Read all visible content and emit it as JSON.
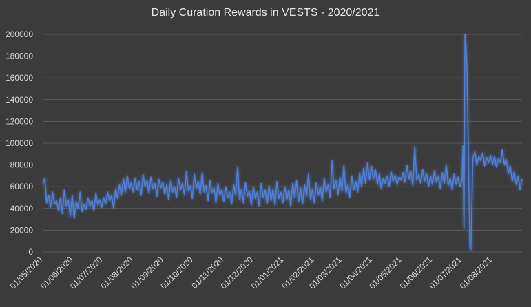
{
  "chart_data": {
    "type": "line",
    "title": "Daily Curation Rewards in VESTS - 2020/2021",
    "xlabel": "",
    "ylabel": "",
    "ylim": [
      0,
      200000
    ],
    "yticks": [
      0,
      20000,
      40000,
      60000,
      80000,
      100000,
      120000,
      140000,
      160000,
      180000,
      200000
    ],
    "xticks": [
      "01/05/2020",
      "01/06/2020",
      "01/07/2020",
      "01/08/2020",
      "01/09/2020",
      "01/10/2020",
      "01/11/2020",
      "01/12/2020",
      "01/01/2021",
      "01/02/2021",
      "01/03/2021",
      "01/04/2021",
      "01/05/2021",
      "01/06/2021",
      "01/07/2021",
      "01/08/2021"
    ],
    "grid": true,
    "legend": "none",
    "line_color": "#4f7fd6",
    "x_range": [
      "2020-05-01",
      "2021-08-31"
    ],
    "series": [
      {
        "values": [
          [
            "2020-05-01",
            62000
          ],
          [
            "2020-05-03",
            68000
          ],
          [
            "2020-05-05",
            45000
          ],
          [
            "2020-05-07",
            52000
          ],
          [
            "2020-05-09",
            41000
          ],
          [
            "2020-05-11",
            55000
          ],
          [
            "2020-05-13",
            44000
          ],
          [
            "2020-05-15",
            47000
          ],
          [
            "2020-05-17",
            38000
          ],
          [
            "2020-05-19",
            50000
          ],
          [
            "2020-05-21",
            35000
          ],
          [
            "2020-05-23",
            57000
          ],
          [
            "2020-05-25",
            42000
          ],
          [
            "2020-05-27",
            48000
          ],
          [
            "2020-05-29",
            33000
          ],
          [
            "2020-05-31",
            52000
          ],
          [
            "2020-06-02",
            31000
          ],
          [
            "2020-06-04",
            46000
          ],
          [
            "2020-06-06",
            40000
          ],
          [
            "2020-06-08",
            55000
          ],
          [
            "2020-06-10",
            37000
          ],
          [
            "2020-06-12",
            44000
          ],
          [
            "2020-06-14",
            39000
          ],
          [
            "2020-06-16",
            50000
          ],
          [
            "2020-06-18",
            42000
          ],
          [
            "2020-06-20",
            47000
          ],
          [
            "2020-06-22",
            38000
          ],
          [
            "2020-06-24",
            54000
          ],
          [
            "2020-06-26",
            43000
          ],
          [
            "2020-06-28",
            48000
          ],
          [
            "2020-06-30",
            41000
          ],
          [
            "2020-07-02",
            50000
          ],
          [
            "2020-07-04",
            44000
          ],
          [
            "2020-07-06",
            55000
          ],
          [
            "2020-07-08",
            47000
          ],
          [
            "2020-07-10",
            52000
          ],
          [
            "2020-07-12",
            40000
          ],
          [
            "2020-07-14",
            58000
          ],
          [
            "2020-07-16",
            49000
          ],
          [
            "2020-07-18",
            62000
          ],
          [
            "2020-07-20",
            52000
          ],
          [
            "2020-07-22",
            67000
          ],
          [
            "2020-07-24",
            55000
          ],
          [
            "2020-07-26",
            70000
          ],
          [
            "2020-07-28",
            58000
          ],
          [
            "2020-07-30",
            64000
          ],
          [
            "2020-08-01",
            55000
          ],
          [
            "2020-08-03",
            68000
          ],
          [
            "2020-08-05",
            57000
          ],
          [
            "2020-08-07",
            65000
          ],
          [
            "2020-08-09",
            52000
          ],
          [
            "2020-08-11",
            71000
          ],
          [
            "2020-08-13",
            60000
          ],
          [
            "2020-08-15",
            66000
          ],
          [
            "2020-08-17",
            54000
          ],
          [
            "2020-08-19",
            69000
          ],
          [
            "2020-08-21",
            58000
          ],
          [
            "2020-08-23",
            63000
          ],
          [
            "2020-08-25",
            51000
          ],
          [
            "2020-08-27",
            67000
          ],
          [
            "2020-08-29",
            59000
          ],
          [
            "2020-08-31",
            64000
          ],
          [
            "2020-09-02",
            53000
          ],
          [
            "2020-09-04",
            62000
          ],
          [
            "2020-09-06",
            48000
          ],
          [
            "2020-09-08",
            66000
          ],
          [
            "2020-09-10",
            55000
          ],
          [
            "2020-09-12",
            60000
          ],
          [
            "2020-09-14",
            50000
          ],
          [
            "2020-09-16",
            68000
          ],
          [
            "2020-09-18",
            57000
          ],
          [
            "2020-09-20",
            63000
          ],
          [
            "2020-09-22",
            52000
          ],
          [
            "2020-09-24",
            74000
          ],
          [
            "2020-09-26",
            56000
          ],
          [
            "2020-09-28",
            61000
          ],
          [
            "2020-09-30",
            49000
          ],
          [
            "2020-10-02",
            72000
          ],
          [
            "2020-10-04",
            58000
          ],
          [
            "2020-10-06",
            65000
          ],
          [
            "2020-10-08",
            53000
          ],
          [
            "2020-10-10",
            73000
          ],
          [
            "2020-10-12",
            55000
          ],
          [
            "2020-10-14",
            61000
          ],
          [
            "2020-10-16",
            47000
          ],
          [
            "2020-10-18",
            66000
          ],
          [
            "2020-10-20",
            54000
          ],
          [
            "2020-10-22",
            59000
          ],
          [
            "2020-10-24",
            45000
          ],
          [
            "2020-10-26",
            63000
          ],
          [
            "2020-10-28",
            52000
          ],
          [
            "2020-10-30",
            57000
          ],
          [
            "2020-11-01",
            46000
          ],
          [
            "2020-11-03",
            60000
          ],
          [
            "2020-11-05",
            50000
          ],
          [
            "2020-11-07",
            55000
          ],
          [
            "2020-11-09",
            44000
          ],
          [
            "2020-11-11",
            62000
          ],
          [
            "2020-11-13",
            52000
          ],
          [
            "2020-11-15",
            78000
          ],
          [
            "2020-11-17",
            48000
          ],
          [
            "2020-11-19",
            58000
          ],
          [
            "2020-11-21",
            45000
          ],
          [
            "2020-11-23",
            64000
          ],
          [
            "2020-11-25",
            51000
          ],
          [
            "2020-11-27",
            56000
          ],
          [
            "2020-11-29",
            43000
          ],
          [
            "2020-12-01",
            60000
          ],
          [
            "2020-12-03",
            49000
          ],
          [
            "2020-12-05",
            55000
          ],
          [
            "2020-12-07",
            42000
          ],
          [
            "2020-12-09",
            63000
          ],
          [
            "2020-12-11",
            50000
          ],
          [
            "2020-12-13",
            57000
          ],
          [
            "2020-12-15",
            44000
          ],
          [
            "2020-12-17",
            61000
          ],
          [
            "2020-12-19",
            47000
          ],
          [
            "2020-12-21",
            58000
          ],
          [
            "2020-12-23",
            43000
          ],
          [
            "2020-12-25",
            65000
          ],
          [
            "2020-12-27",
            49000
          ],
          [
            "2020-12-29",
            55000
          ],
          [
            "2020-12-31",
            45000
          ],
          [
            "2021-01-02",
            60000
          ],
          [
            "2021-01-04",
            48000
          ],
          [
            "2021-01-06",
            57000
          ],
          [
            "2021-01-08",
            42000
          ],
          [
            "2021-01-10",
            63000
          ],
          [
            "2021-01-12",
            50000
          ],
          [
            "2021-01-14",
            66000
          ],
          [
            "2021-01-16",
            46000
          ],
          [
            "2021-01-18",
            59000
          ],
          [
            "2021-01-20",
            44000
          ],
          [
            "2021-01-22",
            62000
          ],
          [
            "2021-01-24",
            51000
          ],
          [
            "2021-01-26",
            72000
          ],
          [
            "2021-01-28",
            48000
          ],
          [
            "2021-01-30",
            58000
          ],
          [
            "2021-02-01",
            45000
          ],
          [
            "2021-02-03",
            64000
          ],
          [
            "2021-02-05",
            52000
          ],
          [
            "2021-02-07",
            60000
          ],
          [
            "2021-02-09",
            47000
          ],
          [
            "2021-02-11",
            68000
          ],
          [
            "2021-02-13",
            55000
          ],
          [
            "2021-02-15",
            62000
          ],
          [
            "2021-02-17",
            50000
          ],
          [
            "2021-02-19",
            84000
          ],
          [
            "2021-02-21",
            58000
          ],
          [
            "2021-02-23",
            66000
          ],
          [
            "2021-02-25",
            52000
          ],
          [
            "2021-02-27",
            69000
          ],
          [
            "2021-03-01",
            56000
          ],
          [
            "2021-03-03",
            80000
          ],
          [
            "2021-03-05",
            54000
          ],
          [
            "2021-03-07",
            62000
          ],
          [
            "2021-03-09",
            50000
          ],
          [
            "2021-03-11",
            70000
          ],
          [
            "2021-03-13",
            57000
          ],
          [
            "2021-03-15",
            65000
          ],
          [
            "2021-03-17",
            55000
          ],
          [
            "2021-03-19",
            73000
          ],
          [
            "2021-03-21",
            60000
          ],
          [
            "2021-03-23",
            77000
          ],
          [
            "2021-03-25",
            63000
          ],
          [
            "2021-03-27",
            82000
          ],
          [
            "2021-03-29",
            66000
          ],
          [
            "2021-03-31",
            79000
          ],
          [
            "2021-04-02",
            67000
          ],
          [
            "2021-04-04",
            76000
          ],
          [
            "2021-04-06",
            62000
          ],
          [
            "2021-04-08",
            72000
          ],
          [
            "2021-04-10",
            58000
          ],
          [
            "2021-04-12",
            68000
          ],
          [
            "2021-04-14",
            63000
          ],
          [
            "2021-04-16",
            70000
          ],
          [
            "2021-04-18",
            60000
          ],
          [
            "2021-04-20",
            74000
          ],
          [
            "2021-04-22",
            65000
          ],
          [
            "2021-04-24",
            71000
          ],
          [
            "2021-04-26",
            62000
          ],
          [
            "2021-04-28",
            69000
          ],
          [
            "2021-04-30",
            66000
          ],
          [
            "2021-05-02",
            73000
          ],
          [
            "2021-05-04",
            64000
          ],
          [
            "2021-05-06",
            80000
          ],
          [
            "2021-05-08",
            67000
          ],
          [
            "2021-05-10",
            74000
          ],
          [
            "2021-05-12",
            61000
          ],
          [
            "2021-05-14",
            97000
          ],
          [
            "2021-05-16",
            66000
          ],
          [
            "2021-05-18",
            71000
          ],
          [
            "2021-05-20",
            63000
          ],
          [
            "2021-05-22",
            76000
          ],
          [
            "2021-05-24",
            65000
          ],
          [
            "2021-05-26",
            72000
          ],
          [
            "2021-05-28",
            60000
          ],
          [
            "2021-05-30",
            70000
          ],
          [
            "2021-06-01",
            62000
          ],
          [
            "2021-06-03",
            75000
          ],
          [
            "2021-06-05",
            64000
          ],
          [
            "2021-06-07",
            70000
          ],
          [
            "2021-06-09",
            58000
          ],
          [
            "2021-06-11",
            73000
          ],
          [
            "2021-06-13",
            63000
          ],
          [
            "2021-06-15",
            80000
          ],
          [
            "2021-06-17",
            61000
          ],
          [
            "2021-06-19",
            68000
          ],
          [
            "2021-06-21",
            57000
          ],
          [
            "2021-06-23",
            72000
          ],
          [
            "2021-06-25",
            62000
          ],
          [
            "2021-06-27",
            69000
          ],
          [
            "2021-06-29",
            60000
          ],
          [
            "2021-07-01",
            66000
          ],
          [
            "2021-07-02",
            98000
          ],
          [
            "2021-07-03",
            22000
          ],
          [
            "2021-07-04",
            200000
          ],
          [
            "2021-07-05",
            190000
          ],
          [
            "2021-07-06",
            170000
          ],
          [
            "2021-07-07",
            120000
          ],
          [
            "2021-07-08",
            60000
          ],
          [
            "2021-07-09",
            5000
          ],
          [
            "2021-07-10",
            2000
          ],
          [
            "2021-07-11",
            40000
          ],
          [
            "2021-07-12",
            86000
          ],
          [
            "2021-07-14",
            92000
          ],
          [
            "2021-07-16",
            80000
          ],
          [
            "2021-07-18",
            88000
          ],
          [
            "2021-07-20",
            84000
          ],
          [
            "2021-07-22",
            91000
          ],
          [
            "2021-07-24",
            79000
          ],
          [
            "2021-07-26",
            87000
          ],
          [
            "2021-07-28",
            82000
          ],
          [
            "2021-07-30",
            89000
          ],
          [
            "2021-08-01",
            80000
          ],
          [
            "2021-08-03",
            88000
          ],
          [
            "2021-08-05",
            78000
          ],
          [
            "2021-08-07",
            86000
          ],
          [
            "2021-08-09",
            82000
          ],
          [
            "2021-08-11",
            94000
          ],
          [
            "2021-08-13",
            80000
          ],
          [
            "2021-08-15",
            85000
          ],
          [
            "2021-08-17",
            72000
          ],
          [
            "2021-08-19",
            79000
          ],
          [
            "2021-08-21",
            65000
          ],
          [
            "2021-08-23",
            74000
          ],
          [
            "2021-08-25",
            62000
          ],
          [
            "2021-08-27",
            70000
          ],
          [
            "2021-08-29",
            57000
          ],
          [
            "2021-08-31",
            67000
          ]
        ]
      }
    ]
  }
}
